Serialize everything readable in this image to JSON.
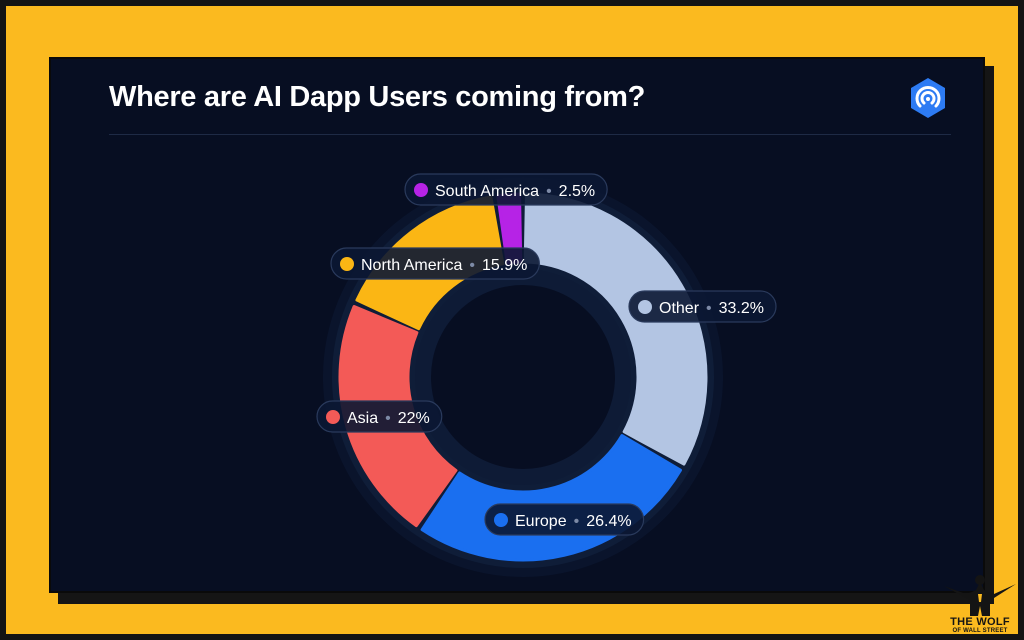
{
  "title": "Where are AI Dapp Users coming from?",
  "brand": {
    "logo_icon": "dappradar-logo-icon",
    "logo_color": "#2D7BF3"
  },
  "watermark": {
    "line1": "THE WOLF",
    "line2": "OF WALL STREET",
    "figure_icon": "wolf-figure-icon"
  },
  "colors": {
    "frame": "#FBBA1F",
    "card": "#070E22",
    "text": "#FFFFFF"
  },
  "chart_data": {
    "type": "pie",
    "title": "Where are AI Dapp Users coming from?",
    "unit": "%",
    "slices": [
      {
        "label": "Other",
        "value": 33.2,
        "display": "33.2%",
        "color": "#B3C5E3"
      },
      {
        "label": "Europe",
        "value": 26.4,
        "display": "26.4%",
        "color": "#1A6FF0"
      },
      {
        "label": "Asia",
        "value": 22,
        "display": "22%",
        "color": "#F35A57"
      },
      {
        "label": "North America",
        "value": 15.9,
        "display": "15.9%",
        "color": "#FBB614"
      },
      {
        "label": "South America",
        "value": 2.5,
        "display": "2.5%",
        "color": "#B623E6"
      }
    ],
    "legend": "inline-labels",
    "donut": true
  }
}
